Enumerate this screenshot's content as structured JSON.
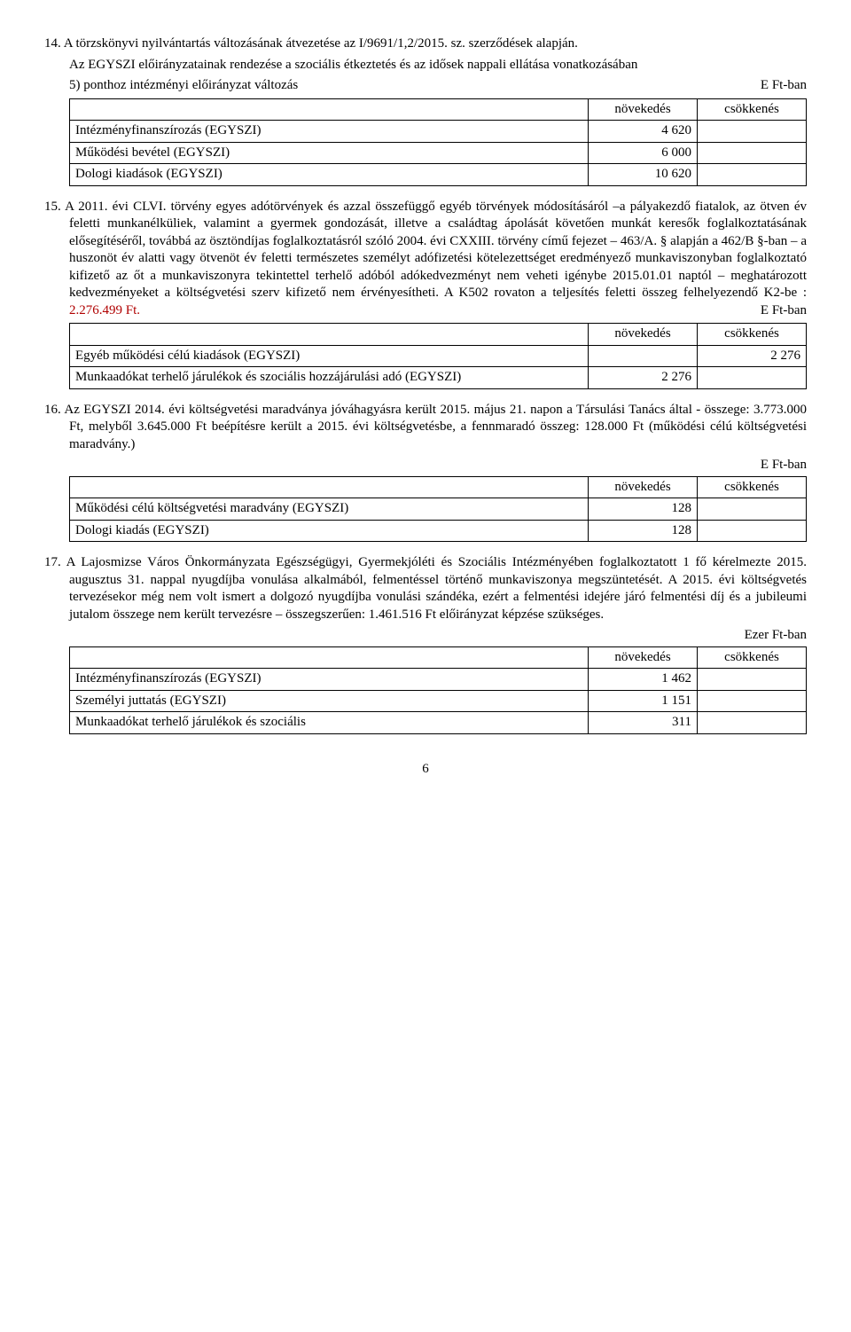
{
  "s14": {
    "num": "14.",
    "intro_a": "A törzskönyvi nyilvántartás változásának átvezetése az I/9691/1,2/2015. sz. szerződések alapján.",
    "intro_b": "Az EGYSZI előirányzatainak rendezése a szociális étkeztetés és az idősek nappali ellátása vonatkozásában",
    "sub5": "5) ponthoz intézményi előirányzat változás",
    "unit": "E Ft-ban",
    "head_inc": "növekedés",
    "head_dec": "csökkenés",
    "rows": [
      {
        "label": "Intézményfinanszírozás (EGYSZI)",
        "inc": "4 620",
        "dec": ""
      },
      {
        "label": "Működési bevétel (EGYSZI)",
        "inc": "6 000",
        "dec": ""
      },
      {
        "label": "Dologi kiadások (EGYSZI)",
        "inc": "10 620",
        "dec": ""
      }
    ]
  },
  "s15": {
    "num": "15.",
    "text_a": "A 2011. évi CLVI. törvény egyes adótörvények és azzal összefüggő egyéb törvények módosításáról –a pályakezdő fiatalok, az ötven év feletti munkanélküliek, valamint a gyermek gondozását, illetve a családtag ápolását követően munkát keresők foglalkoztatásának elősegítéséről, továbbá az ösztöndíjas foglalkoztatásról szóló 2004. évi CXXIII. törvény című fejezet – 463/A. § alapján a 462/B §-ban – a huszonöt év alatti vagy ötvenöt év feletti természetes személyt adófizetési kötelezettséget eredményező munkaviszonyban foglalkoztató kifizető az őt a munkaviszonyra tekintettel terhelő adóból adókedvezményt nem veheti igénybe 2015.01.01 naptól – meghatározott kedvezményeket a költségvetési szerv kifizető nem érvényesítheti. A K502 rovaton a teljesítés feletti összeg felhelyezendő K2-be : ",
    "red": "2.276.499 Ft.",
    "unit": "E Ft-ban",
    "head_inc": "növekedés",
    "head_dec": "csökkenés",
    "rows": [
      {
        "label": "Egyéb működési célú kiadások (EGYSZI)",
        "inc": "",
        "dec": "2 276"
      },
      {
        "label": "Munkaadókat terhelő járulékok és szociális hozzájárulási adó (EGYSZI)",
        "inc": "2 276",
        "dec": ""
      }
    ]
  },
  "s16": {
    "num": "16.",
    "text": "Az EGYSZI 2014. évi költségvetési maradványa jóváhagyásra került 2015. május 21. napon a Társulási Tanács által - összege: 3.773.000 Ft, melyből 3.645.000 Ft beépítésre került a 2015. évi költségvetésbe, a fennmaradó összeg: 128.000 Ft (működési célú költségvetési maradvány.)",
    "unit": "E Ft-ban",
    "head_inc": "növekedés",
    "head_dec": "csökkenés",
    "rows": [
      {
        "label": "Működési célú költségvetési maradvány (EGYSZI)",
        "inc": "128",
        "dec": ""
      },
      {
        "label": "Dologi kiadás (EGYSZI)",
        "inc": "128",
        "dec": ""
      }
    ]
  },
  "s17": {
    "num": "17.",
    "text": "A Lajosmizse Város Önkormányzata Egészségügyi, Gyermekjóléti és Szociális Intézményében foglalkoztatott 1 fő kérelmezte 2015. augusztus 31. nappal nyugdíjba vonulása alkalmából, felmentéssel történő munkaviszonya megszüntetését.  A 2015. évi költségvetés tervezésekor még nem volt ismert a dolgozó nyugdíjba vonulási szándéka, ezért a felmentési idejére járó felmentési díj és a jubileumi jutalom összege nem került tervezésre – összegszerűen: 1.461.516 Ft előirányzat képzése szükséges.",
    "unit": "Ezer Ft-ban",
    "head_inc": "növekedés",
    "head_dec": "csökkenés",
    "rows": [
      {
        "label": "Intézményfinanszírozás (EGYSZI)",
        "inc": "1 462",
        "dec": ""
      },
      {
        "label": "Személyi juttatás (EGYSZI)",
        "inc": "1 151",
        "dec": ""
      },
      {
        "label": "Munkaadókat terhelő járulékok és szociális",
        "inc": "311",
        "dec": ""
      }
    ]
  },
  "page": "6"
}
